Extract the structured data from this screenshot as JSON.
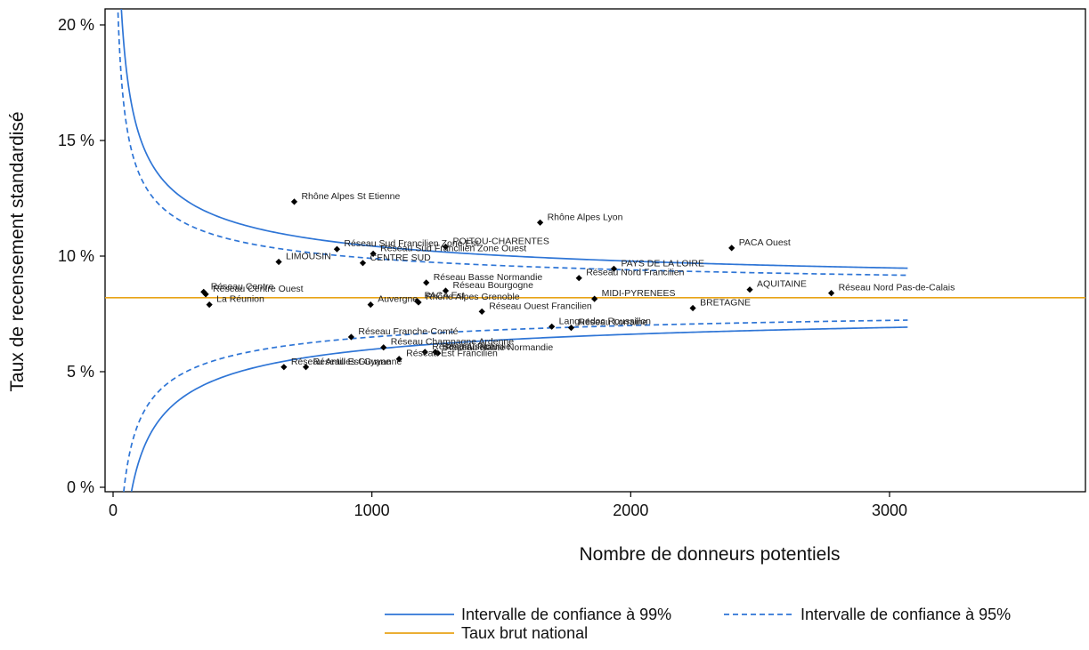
{
  "chart_data": {
    "type": "scatter",
    "title": "",
    "xlabel": "Nombre de donneurs potentiels",
    "ylabel": "Taux de recensement standardisé",
    "xlim": [
      0,
      3750
    ],
    "ylim": [
      0,
      0.205
    ],
    "xticks": [
      0,
      1000,
      2000,
      3000
    ],
    "xtick_labels": [
      "0",
      "1000",
      "2000",
      "3000"
    ],
    "yticks": [
      0,
      0.05,
      0.1,
      0.15,
      0.2
    ],
    "ytick_labels": [
      "0 %",
      "5 %",
      "10 %",
      "15 %",
      "20 %"
    ],
    "grid": false,
    "reference_rate": 0.082,
    "z99": 2.576,
    "z95": 1.96,
    "funnel_x_max": 3070,
    "points": [
      {
        "label": "Rhône Alpes St Etienne",
        "x": 700,
        "y": 0.1235
      },
      {
        "label": "Rhône Alpes Lyon",
        "x": 1650,
        "y": 0.1145
      },
      {
        "label": "POITOU-CHARENTES",
        "x": 1285,
        "y": 0.104
      },
      {
        "label": "Réseau Sud Francilien Zone Est",
        "x": 865,
        "y": 0.103
      },
      {
        "label": "Réseau Sud Francilien Zone Ouest",
        "x": 1005,
        "y": 0.101
      },
      {
        "label": "CENTRE SUD",
        "x": 965,
        "y": 0.097
      },
      {
        "label": "LIMOUSIN",
        "x": 640,
        "y": 0.0975
      },
      {
        "label": "PACA Ouest",
        "x": 2390,
        "y": 0.1035
      },
      {
        "label": "PAYS DE LA LOIRE",
        "x": 1935,
        "y": 0.0945
      },
      {
        "label": "Réseau Nord Francilien",
        "x": 1800,
        "y": 0.0905
      },
      {
        "label": "Réseau Basse Normandie",
        "x": 1210,
        "y": 0.0885
      },
      {
        "label": "Réseau Bourgogne",
        "x": 1285,
        "y": 0.085
      },
      {
        "label": "PACA Est",
        "x": 1175,
        "y": 0.0805
      },
      {
        "label": "Rhône Alpes Grenoble",
        "x": 1180,
        "y": 0.08
      },
      {
        "label": "Auvergne",
        "x": 995,
        "y": 0.079
      },
      {
        "label": "Réseau Ouest Francilien",
        "x": 1425,
        "y": 0.076
      },
      {
        "label": "MIDI-PYRENEES",
        "x": 1860,
        "y": 0.0815
      },
      {
        "label": "AQUITAINE",
        "x": 2460,
        "y": 0.0855
      },
      {
        "label": "Réseau Nord Pas-de-Calais",
        "x": 2775,
        "y": 0.084
      },
      {
        "label": "BRETAGNE",
        "x": 2240,
        "y": 0.0775
      },
      {
        "label": "Réseau Centre",
        "x": 350,
        "y": 0.0845
      },
      {
        "label": "Réseau Centre Ouest",
        "x": 358,
        "y": 0.0835
      },
      {
        "label": "La Réunion",
        "x": 372,
        "y": 0.079
      },
      {
        "label": "Languedoc Roussillon",
        "x": 1695,
        "y": 0.0695
      },
      {
        "label": "Réseau Lorraine",
        "x": 1770,
        "y": 0.069
      },
      {
        "label": "Réseau Franche-Comté",
        "x": 920,
        "y": 0.065
      },
      {
        "label": "Réseau Champagne Ardenne",
        "x": 1045,
        "y": 0.0605
      },
      {
        "label": "Réseau Alsace",
        "x": 1205,
        "y": 0.0585
      },
      {
        "label": "Réseau Picardie",
        "x": 1245,
        "y": 0.0585
      },
      {
        "label": "Réseau Haute Normandie",
        "x": 1255,
        "y": 0.058
      },
      {
        "label": "Réseau Est Francilien",
        "x": 1105,
        "y": 0.0555
      },
      {
        "label": "Réseau Antilles Guyane",
        "x": 660,
        "y": 0.052
      },
      {
        "label": "Réseau Est Guyanne",
        "x": 745,
        "y": 0.052
      }
    ],
    "legend": {
      "position": "bottom",
      "entries": [
        {
          "name": "Intervalle de confiance à 99%",
          "style": "solid",
          "color": "#2e75d6"
        },
        {
          "name": "Intervalle de confiance à 95%",
          "style": "dashed",
          "color": "#2e75d6"
        },
        {
          "name": "Taux brut national",
          "style": "solid",
          "color": "#e8a317"
        }
      ]
    },
    "colors": {
      "ci": "#2e75d6",
      "reference": "#e8a317",
      "points": "#000000",
      "axis": "#000000"
    }
  }
}
